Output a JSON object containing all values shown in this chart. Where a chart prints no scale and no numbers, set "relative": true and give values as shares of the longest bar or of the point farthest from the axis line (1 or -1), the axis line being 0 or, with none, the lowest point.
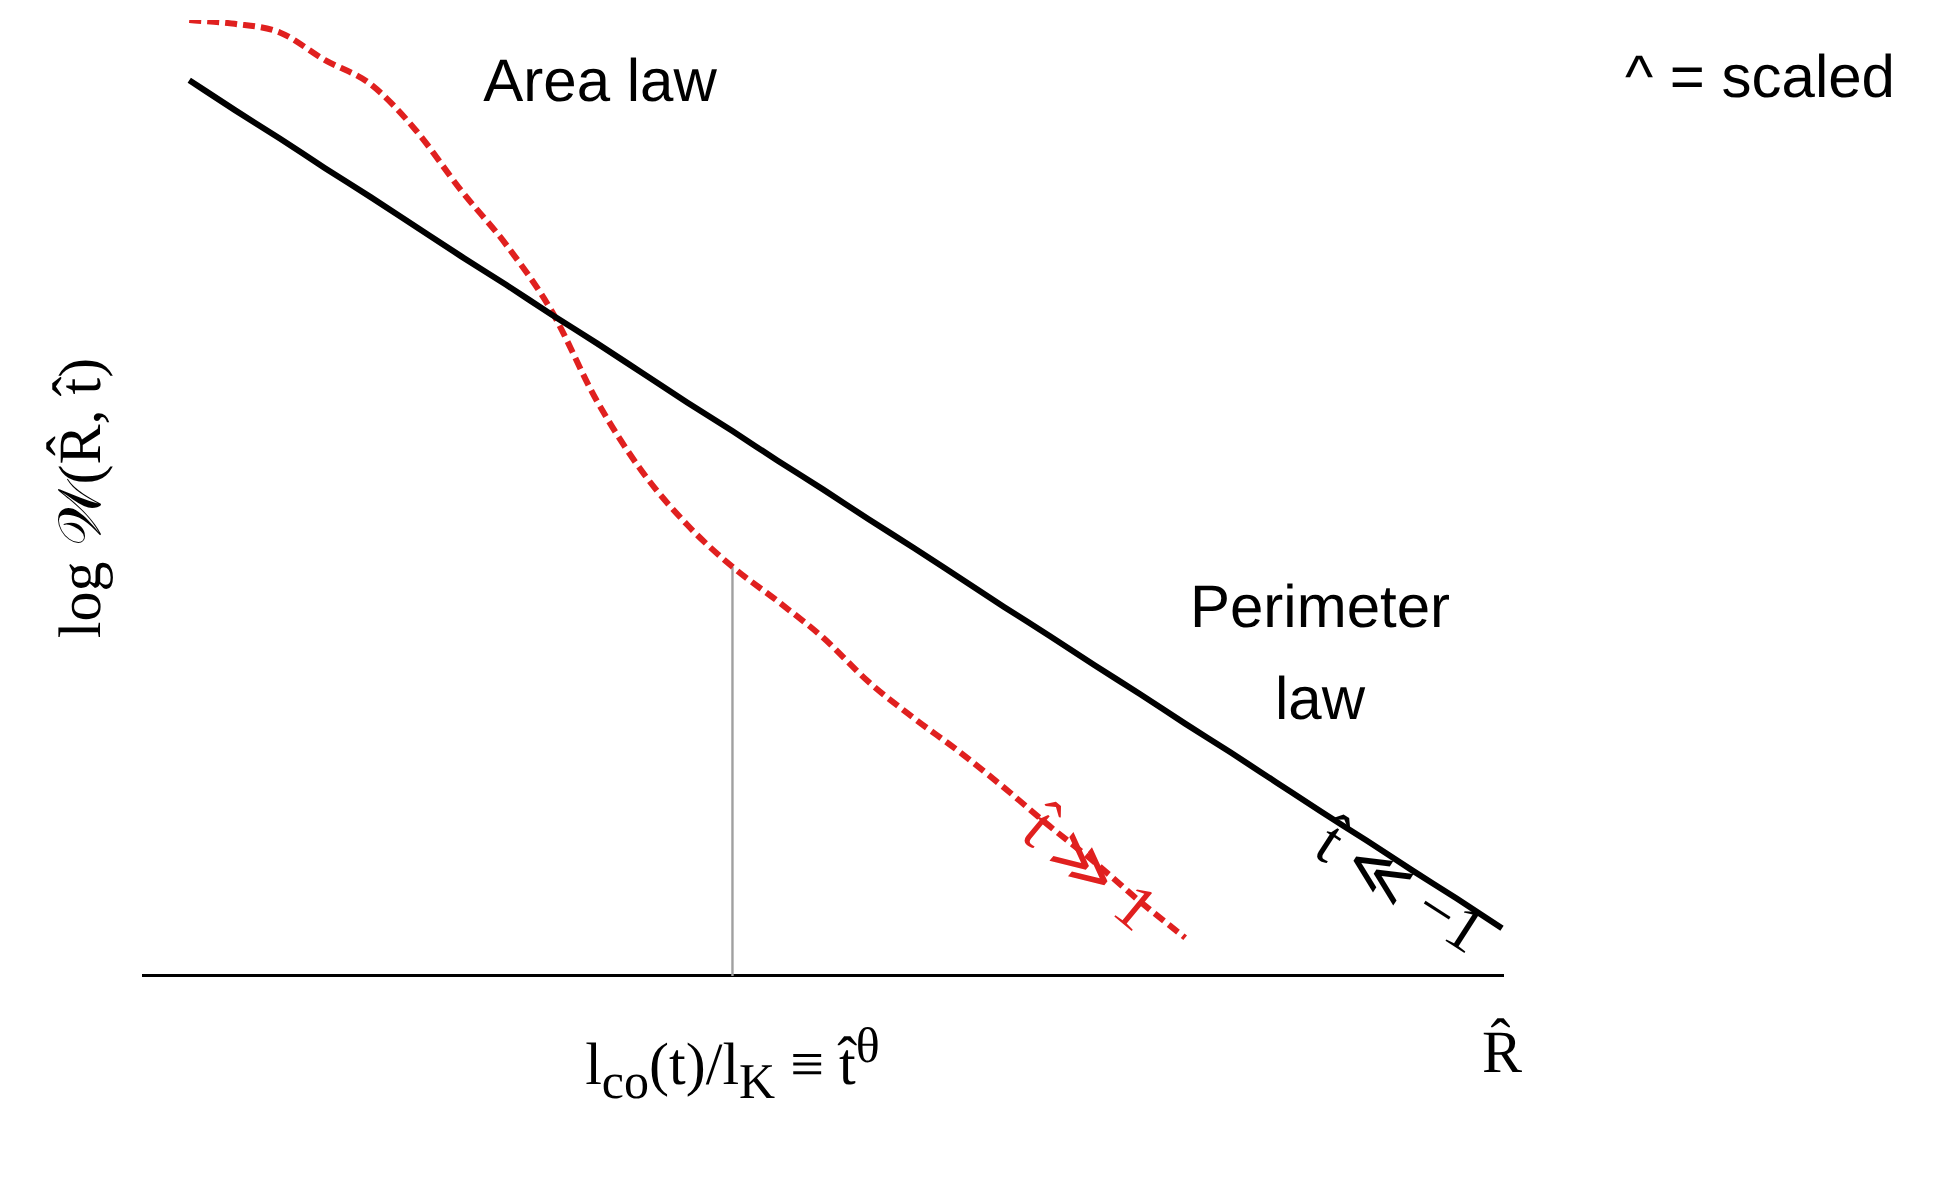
{
  "chart_data": {
    "type": "line",
    "relative": true,
    "ylabel": "log 𝒲(R̂, t̂)",
    "categories": [
      null,
      null,
      null,
      null,
      null,
      null,
      null,
      null,
      null,
      null,
      null,
      null,
      null,
      "l$_{co}$(t)/l$_{K}$ ≡ t̂$^{θ}$",
      null,
      null,
      null,
      null,
      null,
      null,
      null,
      null,
      null,
      null,
      null,
      null,
      null,
      null,
      null,
      null,
      "R̂"
    ],
    "series": [
      {
        "name": "t̂ ≪ −1",
        "color": "#000000",
        "line_style": "solid",
        "values": [
          null,
          0.937,
          0.906,
          0.876,
          0.845,
          0.815,
          0.784,
          0.753,
          0.723,
          0.692,
          0.662,
          0.631,
          0.6,
          0.57,
          0.539,
          0.509,
          0.478,
          0.448,
          0.417,
          0.386,
          0.356,
          0.325,
          0.295,
          0.264,
          0.234,
          0.203,
          0.172,
          0.142,
          0.111,
          0.081,
          0.05
        ]
      },
      {
        "name": "t̂ ≫ 1",
        "color": "#e0201f",
        "line_style": "dashed",
        "values": [
          null,
          1,
          0.996,
          0.987,
          0.958,
          0.933,
          0.885,
          0.822,
          0.765,
          0.696,
          0.602,
          0.528,
          0.472,
          0.428,
          0.392,
          0.354,
          0.308,
          0.27,
          0.235,
          0.197,
          0.157,
          0.119,
          0.078,
          0.04,
          null,
          null,
          null,
          null,
          null,
          null,
          null
        ]
      }
    ],
    "ref_lines": [
      {
        "axis": "x",
        "value": "l$_{co}$(t)/l$_{K}$ ≡ t̂$^{θ}$",
        "color": "#a0a0a0"
      }
    ],
    "annotations": [
      "Area law",
      "Perimeter law",
      "^ = scaled"
    ],
    "marker": "none",
    "grid": false,
    "legend": false
  }
}
